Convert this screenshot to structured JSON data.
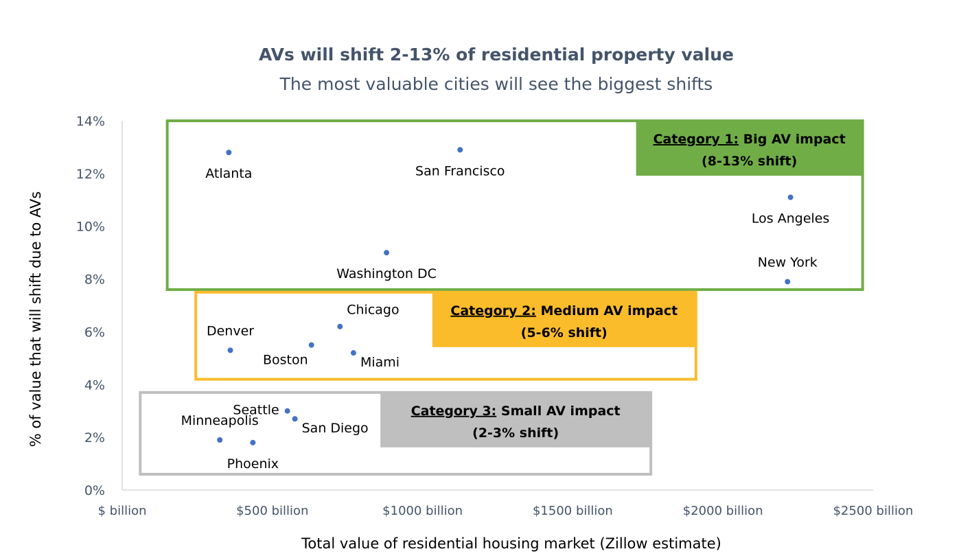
{
  "chart_data": {
    "type": "scatter",
    "title": "AVs will shift 2-13% of residential property value",
    "subtitle": "The most valuable cities will see the biggest shifts",
    "xlabel": "Total value of residential housing market (Zillow estimate)",
    "ylabel": "% of value that will shift due to AVs",
    "xlim": [
      0,
      2500
    ],
    "ylim": [
      0,
      14
    ],
    "x_ticks": [
      {
        "value": 0,
        "label": "$ billion"
      },
      {
        "value": 500,
        "label": "$500 billion"
      },
      {
        "value": 1000,
        "label": "$1000 billion"
      },
      {
        "value": 1500,
        "label": "$1500 billion"
      },
      {
        "value": 2000,
        "label": "$2000 billion"
      },
      {
        "value": 2500,
        "label": "$2500 billion"
      }
    ],
    "y_ticks": [
      {
        "value": 0,
        "label": "0%"
      },
      {
        "value": 2,
        "label": "2%"
      },
      {
        "value": 4,
        "label": "4%"
      },
      {
        "value": 6,
        "label": "6%"
      },
      {
        "value": 8,
        "label": "8%"
      },
      {
        "value": 10,
        "label": "10%"
      },
      {
        "value": 12,
        "label": "12%"
      },
      {
        "value": 14,
        "label": "14%"
      }
    ],
    "grid": false,
    "point_color": "#4472c4",
    "points": [
      {
        "name": "Atlanta",
        "x": 355,
        "y": 12.8,
        "label_pos": "below"
      },
      {
        "name": "San Francisco",
        "x": 1125,
        "y": 12.9,
        "label_pos": "below"
      },
      {
        "name": "Los Angeles",
        "x": 2225,
        "y": 11.1,
        "label_pos": "below"
      },
      {
        "name": "Washington DC",
        "x": 880,
        "y": 9.0,
        "label_pos": "below"
      },
      {
        "name": "New York",
        "x": 2215,
        "y": 7.9,
        "label_pos": "above"
      },
      {
        "name": "Chicago",
        "x": 725,
        "y": 6.2,
        "label_pos": "above-right"
      },
      {
        "name": "Denver",
        "x": 360,
        "y": 5.3,
        "label_pos": "above"
      },
      {
        "name": "Boston",
        "x": 630,
        "y": 5.5,
        "label_pos": "below-left"
      },
      {
        "name": "Miami",
        "x": 770,
        "y": 5.2,
        "label_pos": "below-right"
      },
      {
        "name": "Seattle",
        "x": 550,
        "y": 3.0,
        "label_pos": "left"
      },
      {
        "name": "San Diego",
        "x": 575,
        "y": 2.7,
        "label_pos": "below-right"
      },
      {
        "name": "Minneapolis",
        "x": 325,
        "y": 1.9,
        "label_pos": "above"
      },
      {
        "name": "Phoenix",
        "x": 435,
        "y": 1.8,
        "label_pos": "below"
      }
    ],
    "categories": [
      {
        "head_underlined": "Category 1:",
        "head_rest": "Big AV impact",
        "sub": "(8-13% shift)",
        "color": "#70ad47",
        "box": {
          "x0": 150,
          "x1": 2465,
          "y0": 7.6,
          "y1": 14.0
        }
      },
      {
        "head_underlined": "Category 2:",
        "head_rest": "Medium AV impact",
        "sub": "(5-6% shift)",
        "color": "#fbbc2b",
        "box": {
          "x0": 245,
          "x1": 1910,
          "y0": 4.2,
          "y1": 7.5
        }
      },
      {
        "head_underlined": "Category 3:",
        "head_rest": "Small  AV impact",
        "sub": "(2-3% shift)",
        "color": "#bfbfbf",
        "box": {
          "x0": 60,
          "x1": 1760,
          "y0": 0.6,
          "y1": 3.7
        }
      }
    ]
  }
}
